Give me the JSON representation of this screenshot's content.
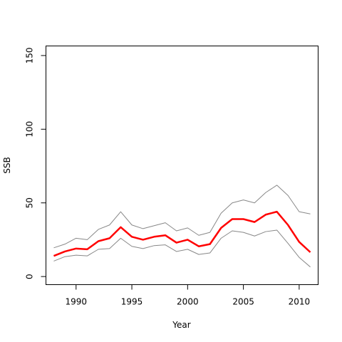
{
  "chart_data": {
    "type": "line",
    "title": "",
    "xlabel": "Year",
    "ylabel": "SSB",
    "xlim": [
      1987.3,
      2011.7
    ],
    "ylim": [
      -5.5,
      156.5
    ],
    "x_ticks": [
      1990,
      1995,
      2000,
      2005,
      2010
    ],
    "y_ticks": [
      0,
      50,
      100,
      150
    ],
    "grid": false,
    "legend": "none",
    "x": [
      1988,
      1989,
      1990,
      1991,
      1992,
      1993,
      1994,
      1995,
      1996,
      1997,
      1998,
      1999,
      2000,
      2001,
      2002,
      2003,
      2004,
      2005,
      2006,
      2007,
      2008,
      2009,
      2010,
      2011
    ],
    "series": [
      {
        "role": "estimate",
        "color": "#ff0000",
        "values": [
          14,
          17,
          19,
          18.5,
          24,
          26,
          33.5,
          27,
          25,
          27,
          28,
          23,
          25,
          20.5,
          22,
          33,
          39,
          39,
          37,
          42,
          44,
          35,
          23.5,
          16.5
        ]
      },
      {
        "role": "upper",
        "color": "#888888",
        "values": [
          19.5,
          22,
          26,
          25,
          32,
          35,
          44,
          35,
          32.5,
          34.5,
          36.5,
          31,
          33,
          28,
          30,
          43,
          50,
          52,
          50,
          57,
          62,
          55,
          44,
          42.5
        ]
      },
      {
        "role": "lower",
        "color": "#888888",
        "values": [
          10.5,
          13.5,
          14.5,
          14,
          18.5,
          19,
          26,
          20.5,
          19,
          21,
          21.5,
          17,
          18.5,
          15,
          16,
          26,
          31,
          30,
          27.5,
          30.5,
          31.5,
          22.5,
          13,
          6.5
        ]
      }
    ]
  }
}
